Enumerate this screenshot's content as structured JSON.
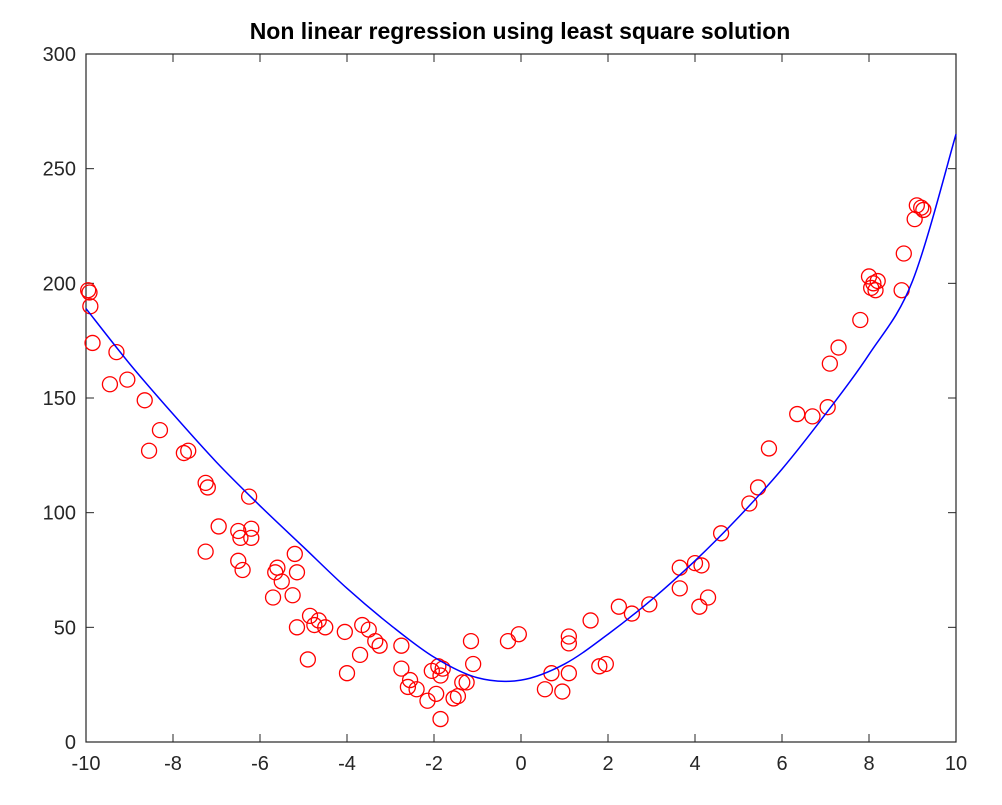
{
  "chart_data": {
    "type": "scatter",
    "title": "Non linear regression using least square solution",
    "xlabel": "",
    "ylabel": "",
    "xlim": [
      -10,
      10
    ],
    "ylim": [
      0,
      300
    ],
    "x_ticks": [
      -10,
      -8,
      -6,
      -4,
      -2,
      0,
      2,
      4,
      6,
      8,
      10
    ],
    "y_ticks": [
      0,
      50,
      100,
      150,
      200,
      250,
      300
    ],
    "grid": false,
    "legend": "none",
    "colors": {
      "points": "#ff0000",
      "fit": "#0000ff",
      "axes": "#262626"
    },
    "series": [
      {
        "type": "scatter",
        "marker": "circle",
        "points": [
          {
            "x": -9.95,
            "y": 197
          },
          {
            "x": -9.92,
            "y": 196
          },
          {
            "x": -9.9,
            "y": 190
          },
          {
            "x": -9.85,
            "y": 174
          },
          {
            "x": -9.45,
            "y": 156
          },
          {
            "x": -9.3,
            "y": 170
          },
          {
            "x": -9.05,
            "y": 158
          },
          {
            "x": -8.65,
            "y": 149
          },
          {
            "x": -8.55,
            "y": 127
          },
          {
            "x": -8.3,
            "y": 136
          },
          {
            "x": -7.75,
            "y": 126
          },
          {
            "x": -7.65,
            "y": 127
          },
          {
            "x": -7.25,
            "y": 113
          },
          {
            "x": -7.2,
            "y": 111
          },
          {
            "x": -7.25,
            "y": 83
          },
          {
            "x": -6.95,
            "y": 94
          },
          {
            "x": -6.5,
            "y": 92
          },
          {
            "x": -6.45,
            "y": 89
          },
          {
            "x": -6.5,
            "y": 79
          },
          {
            "x": -6.4,
            "y": 75
          },
          {
            "x": -6.25,
            "y": 107
          },
          {
            "x": -6.2,
            "y": 93
          },
          {
            "x": -6.2,
            "y": 89
          },
          {
            "x": -5.7,
            "y": 63
          },
          {
            "x": -5.65,
            "y": 74
          },
          {
            "x": -5.6,
            "y": 76
          },
          {
            "x": -5.5,
            "y": 70
          },
          {
            "x": -5.2,
            "y": 82
          },
          {
            "x": -5.15,
            "y": 74
          },
          {
            "x": -5.25,
            "y": 64
          },
          {
            "x": -5.15,
            "y": 50
          },
          {
            "x": -4.85,
            "y": 55
          },
          {
            "x": -4.9,
            "y": 36
          },
          {
            "x": -4.75,
            "y": 51
          },
          {
            "x": -4.65,
            "y": 53
          },
          {
            "x": -4.5,
            "y": 50
          },
          {
            "x": -4.05,
            "y": 48
          },
          {
            "x": -4.0,
            "y": 30
          },
          {
            "x": -3.7,
            "y": 38
          },
          {
            "x": -3.65,
            "y": 51
          },
          {
            "x": -3.5,
            "y": 49
          },
          {
            "x": -3.35,
            "y": 44
          },
          {
            "x": -3.25,
            "y": 42
          },
          {
            "x": -2.75,
            "y": 42
          },
          {
            "x": -2.75,
            "y": 32
          },
          {
            "x": -2.6,
            "y": 24
          },
          {
            "x": -2.55,
            "y": 27
          },
          {
            "x": -2.4,
            "y": 23
          },
          {
            "x": -2.15,
            "y": 18
          },
          {
            "x": -2.05,
            "y": 31
          },
          {
            "x": -1.95,
            "y": 21
          },
          {
            "x": -1.9,
            "y": 33
          },
          {
            "x": -1.85,
            "y": 29
          },
          {
            "x": -1.8,
            "y": 32
          },
          {
            "x": -1.85,
            "y": 10
          },
          {
            "x": -1.55,
            "y": 19
          },
          {
            "x": -1.45,
            "y": 20
          },
          {
            "x": -1.35,
            "y": 26
          },
          {
            "x": -1.25,
            "y": 26
          },
          {
            "x": -1.15,
            "y": 44
          },
          {
            "x": -1.1,
            "y": 34
          },
          {
            "x": -0.3,
            "y": 44
          },
          {
            "x": -0.05,
            "y": 47
          },
          {
            "x": 0.55,
            "y": 23
          },
          {
            "x": 0.7,
            "y": 30
          },
          {
            "x": 0.95,
            "y": 22
          },
          {
            "x": 1.1,
            "y": 30
          },
          {
            "x": 1.1,
            "y": 46
          },
          {
            "x": 1.1,
            "y": 43
          },
          {
            "x": 1.6,
            "y": 53
          },
          {
            "x": 1.8,
            "y": 33
          },
          {
            "x": 1.95,
            "y": 34
          },
          {
            "x": 2.25,
            "y": 59
          },
          {
            "x": 2.55,
            "y": 56
          },
          {
            "x": 2.95,
            "y": 60
          },
          {
            "x": 3.65,
            "y": 76
          },
          {
            "x": 3.65,
            "y": 67
          },
          {
            "x": 4.0,
            "y": 78
          },
          {
            "x": 4.15,
            "y": 77
          },
          {
            "x": 4.1,
            "y": 59
          },
          {
            "x": 4.3,
            "y": 63
          },
          {
            "x": 4.6,
            "y": 91
          },
          {
            "x": 5.25,
            "y": 104
          },
          {
            "x": 5.45,
            "y": 111
          },
          {
            "x": 5.7,
            "y": 128
          },
          {
            "x": 6.35,
            "y": 143
          },
          {
            "x": 6.7,
            "y": 142
          },
          {
            "x": 7.05,
            "y": 146
          },
          {
            "x": 7.1,
            "y": 165
          },
          {
            "x": 7.3,
            "y": 172
          },
          {
            "x": 7.8,
            "y": 184
          },
          {
            "x": 8.0,
            "y": 203
          },
          {
            "x": 8.05,
            "y": 198
          },
          {
            "x": 8.1,
            "y": 200
          },
          {
            "x": 8.2,
            "y": 201
          },
          {
            "x": 8.15,
            "y": 197
          },
          {
            "x": 8.75,
            "y": 197
          },
          {
            "x": 8.8,
            "y": 213
          },
          {
            "x": 9.05,
            "y": 228
          },
          {
            "x": 9.1,
            "y": 234
          },
          {
            "x": 9.2,
            "y": 233
          },
          {
            "x": 9.25,
            "y": 232
          }
        ]
      },
      {
        "type": "line",
        "x": [
          -10,
          -9,
          -8,
          -7,
          -6,
          -5,
          -4,
          -3,
          -2,
          -1,
          0,
          1,
          2,
          3,
          4,
          5,
          6,
          7,
          8,
          9,
          10
        ],
        "y": [
          189,
          165,
          143,
          122,
          103,
          85,
          67,
          51,
          37,
          28,
          27,
          34,
          47,
          62,
          79,
          98,
          119,
          143,
          169,
          201,
          265
        ]
      }
    ]
  }
}
